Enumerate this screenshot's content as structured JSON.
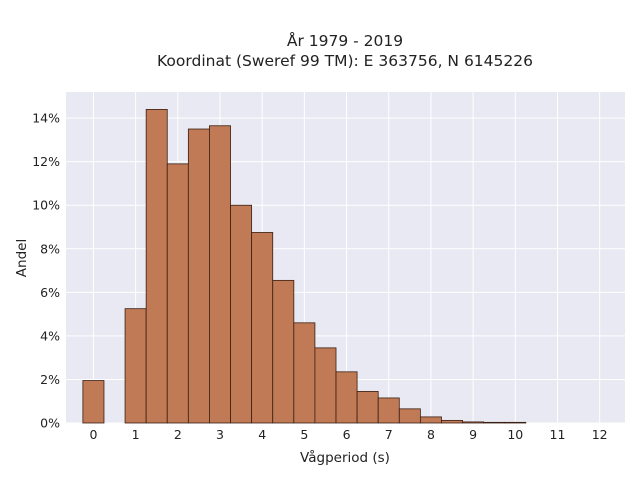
{
  "chart_data": {
    "type": "bar",
    "title_line1": "År 1979 - 2019",
    "title_line2": "Koordinat (Sweref 99 TM): E 363756, N 6145226",
    "xlabel": "Vågperiod (s)",
    "ylabel": "Andel",
    "bin_width": 0.5,
    "bin_starts": [
      0,
      0.5,
      1,
      1.5,
      2,
      2.5,
      3,
      3.5,
      4,
      4.5,
      5,
      5.5,
      6,
      6.5,
      7,
      7.5,
      8,
      8.5,
      9,
      9.5,
      10,
      10.5,
      11,
      11.5,
      12
    ],
    "values": [
      1.95,
      0,
      5.25,
      14.4,
      11.9,
      13.5,
      13.65,
      10.0,
      8.75,
      6.55,
      4.6,
      3.45,
      2.35,
      1.45,
      1.15,
      0.65,
      0.28,
      0.12,
      0.05,
      0.03,
      0.03,
      0,
      0,
      0,
      0
    ],
    "value_unit": "%",
    "x_ticks": [
      "0",
      "1",
      "2",
      "3",
      "4",
      "5",
      "6",
      "7",
      "8",
      "9",
      "10",
      "11",
      "12"
    ],
    "x_tick_values": [
      0.25,
      1.25,
      2.25,
      3.25,
      4.25,
      5.25,
      6.25,
      7.25,
      8.25,
      9.25,
      10.25,
      11.25,
      12.25
    ],
    "y_ticks": [
      "0%",
      "2%",
      "4%",
      "6%",
      "8%",
      "10%",
      "12%",
      "14%"
    ],
    "y_tick_values": [
      0,
      2,
      4,
      6,
      8,
      10,
      12,
      14
    ],
    "xlim": [
      -0.4,
      12.85
    ],
    "ylim": [
      0,
      15.2
    ],
    "grid": true,
    "bar_color": "#c07a55",
    "bar_edge_color": "#3a1f12",
    "plot_background": "#e8e9f2"
  }
}
